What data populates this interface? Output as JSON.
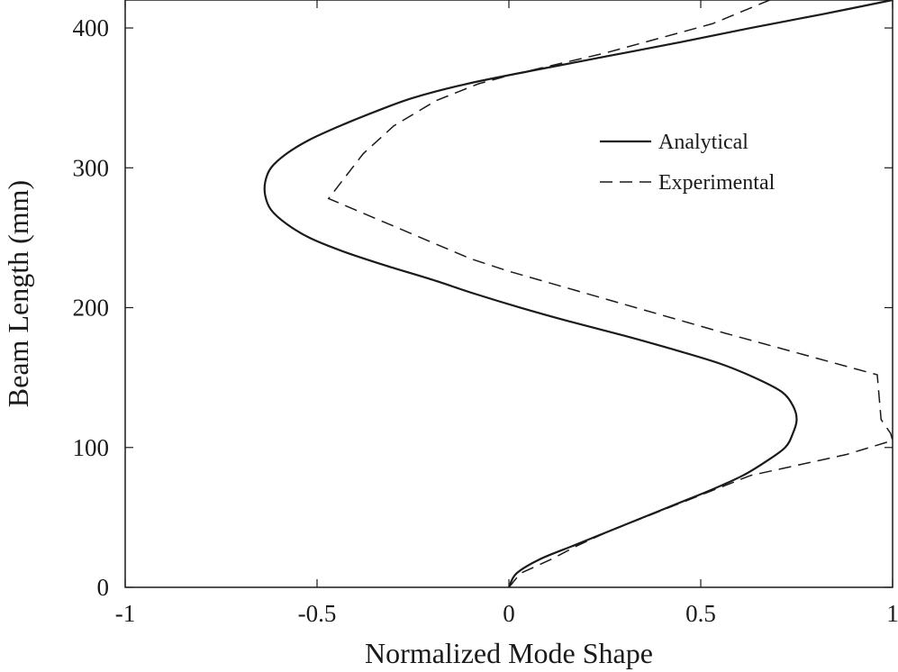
{
  "chart_data": {
    "type": "line",
    "title": "",
    "xlabel": "Normalized Mode Shape",
    "ylabel": "Beam Length (mm)",
    "xlim": [
      -1,
      1
    ],
    "ylim": [
      0,
      420
    ],
    "x_ticks": [
      -1,
      -0.5,
      0,
      0.5,
      1
    ],
    "x_tick_labels": [
      "-1",
      "-0.5",
      "0",
      "0.5",
      "1"
    ],
    "y_ticks": [
      0,
      100,
      200,
      300,
      400
    ],
    "y_tick_labels": [
      "0",
      "100",
      "200",
      "300",
      "400"
    ],
    "grid": false,
    "legend_position": "top-right",
    "series": [
      {
        "name": "Analytical",
        "style": "solid",
        "color": "#1a1a1a",
        "points": [
          [
            0.0,
            0
          ],
          [
            0.02,
            10
          ],
          [
            0.08,
            20
          ],
          [
            0.17,
            30
          ],
          [
            0.26,
            40
          ],
          [
            0.35,
            50
          ],
          [
            0.44,
            60
          ],
          [
            0.53,
            70
          ],
          [
            0.61,
            80
          ],
          [
            0.67,
            90
          ],
          [
            0.72,
            100
          ],
          [
            0.74,
            110
          ],
          [
            0.75,
            120
          ],
          [
            0.74,
            130
          ],
          [
            0.71,
            140
          ],
          [
            0.64,
            150
          ],
          [
            0.55,
            160
          ],
          [
            0.43,
            170
          ],
          [
            0.3,
            180
          ],
          [
            0.16,
            190
          ],
          [
            0.03,
            200
          ],
          [
            -0.09,
            210
          ],
          [
            -0.2,
            220
          ],
          [
            -0.32,
            230
          ],
          [
            -0.43,
            240
          ],
          [
            -0.52,
            250
          ],
          [
            -0.58,
            260
          ],
          [
            -0.62,
            270
          ],
          [
            -0.635,
            280
          ],
          [
            -0.635,
            290
          ],
          [
            -0.62,
            300
          ],
          [
            -0.58,
            310
          ],
          [
            -0.52,
            320
          ],
          [
            -0.44,
            330
          ],
          [
            -0.35,
            340
          ],
          [
            -0.25,
            350
          ],
          [
            -0.11,
            360
          ],
          [
            0.07,
            370
          ],
          [
            0.26,
            380
          ],
          [
            0.45,
            390
          ],
          [
            0.63,
            400
          ],
          [
            0.82,
            410
          ],
          [
            1.0,
            420
          ]
        ]
      },
      {
        "name": "Experimental",
        "style": "dashed",
        "color": "#1a1a1a",
        "points": [
          [
            0.0,
            0
          ],
          [
            0.03,
            10
          ],
          [
            0.11,
            20
          ],
          [
            0.18,
            30
          ],
          [
            0.26,
            40
          ],
          [
            0.63,
            80
          ],
          [
            0.88,
            95
          ],
          [
            1.0,
            105
          ],
          [
            0.995,
            110
          ],
          [
            0.97,
            120
          ],
          [
            0.96,
            152
          ],
          [
            0.56,
            182
          ],
          [
            0.0,
            226
          ],
          [
            -0.1,
            235
          ],
          [
            -0.47,
            278
          ],
          [
            -0.38,
            310
          ],
          [
            -0.3,
            330
          ],
          [
            -0.19,
            348
          ],
          [
            -0.08,
            360
          ],
          [
            0.0,
            366
          ],
          [
            0.25,
            382
          ],
          [
            0.53,
            403
          ],
          [
            0.68,
            420
          ]
        ]
      }
    ]
  }
}
